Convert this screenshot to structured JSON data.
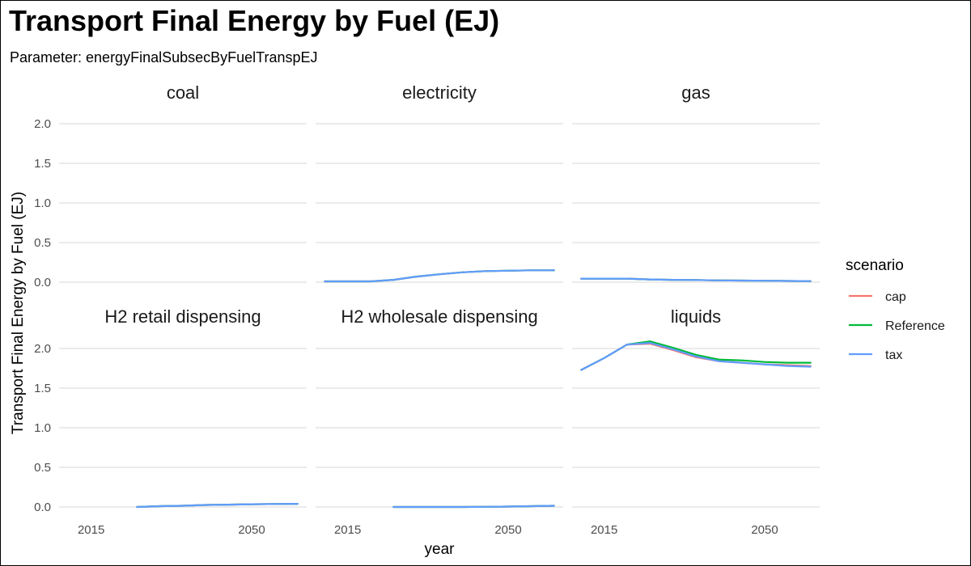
{
  "title": "Transport Final Energy by Fuel (EJ)",
  "subtitle": "Parameter: energyFinalSubsecByFuelTranspEJ",
  "chart_data": {
    "type": "line",
    "title": "Transport Final Energy by Fuel (EJ)",
    "subtitle": "Parameter: energyFinalSubsecByFuelTranspEJ",
    "xlabel": "year",
    "ylabel": "Transport Final Energy by Fuel (EJ)",
    "xlim": [
      2008,
      2062
    ],
    "ylim": [
      0,
      2.1
    ],
    "x_ticks": [
      2015,
      2050
    ],
    "x_tick_labels": [
      "2015",
      "2050"
    ],
    "y_ticks": [
      0,
      0.5,
      1,
      1.5,
      2
    ],
    "y_tick_labels": [
      "0.0",
      "0.5",
      "1.0",
      "1.5",
      "2.0"
    ],
    "grid": true,
    "facet_layout": "2 rows x 3 columns",
    "legend": {
      "title": "scenario",
      "position": "right",
      "entries": [
        {
          "name": "cap",
          "color": "#F8766D"
        },
        {
          "name": "Reference",
          "color": "#00BA38"
        },
        {
          "name": "tax",
          "color": "#619CFF"
        }
      ]
    },
    "panels": [
      {
        "label": "coal",
        "series": []
      },
      {
        "label": "electricity",
        "series": [
          {
            "name": "cap",
            "color": "#F8766D",
            "x": [
              2010,
              2015,
              2020,
              2025,
              2030,
              2035,
              2040,
              2045,
              2050,
              2055,
              2060
            ],
            "y": [
              0.01,
              0.01,
              0.01,
              0.03,
              0.07,
              0.1,
              0.125,
              0.14,
              0.145,
              0.15,
              0.15
            ]
          },
          {
            "name": "Reference",
            "color": "#00BA38",
            "x": [
              2010,
              2015,
              2020,
              2025,
              2030,
              2035,
              2040,
              2045,
              2050,
              2055,
              2060
            ],
            "y": [
              0.01,
              0.01,
              0.01,
              0.03,
              0.07,
              0.1,
              0.125,
              0.14,
              0.145,
              0.15,
              0.15
            ]
          },
          {
            "name": "tax",
            "color": "#619CFF",
            "x": [
              2010,
              2015,
              2020,
              2025,
              2030,
              2035,
              2040,
              2045,
              2050,
              2055,
              2060
            ],
            "y": [
              0.01,
              0.01,
              0.01,
              0.03,
              0.07,
              0.1,
              0.125,
              0.14,
              0.145,
              0.15,
              0.15
            ]
          }
        ]
      },
      {
        "label": "gas",
        "series": [
          {
            "name": "cap",
            "color": "#F8766D",
            "x": [
              2010,
              2015,
              2020,
              2025,
              2030,
              2035,
              2040,
              2045,
              2050,
              2055,
              2060
            ],
            "y": [
              0.045,
              0.045,
              0.045,
              0.035,
              0.03,
              0.028,
              0.022,
              0.02,
              0.018,
              0.015,
              0.013
            ]
          },
          {
            "name": "Reference",
            "color": "#00BA38",
            "x": [
              2010,
              2015,
              2020,
              2025,
              2030,
              2035,
              2040,
              2045,
              2050,
              2055,
              2060
            ],
            "y": [
              0.045,
              0.045,
              0.045,
              0.035,
              0.03,
              0.028,
              0.022,
              0.02,
              0.018,
              0.015,
              0.013
            ]
          },
          {
            "name": "tax",
            "color": "#619CFF",
            "x": [
              2010,
              2015,
              2020,
              2025,
              2030,
              2035,
              2040,
              2045,
              2050,
              2055,
              2060
            ],
            "y": [
              0.045,
              0.045,
              0.045,
              0.035,
              0.03,
              0.028,
              0.022,
              0.02,
              0.018,
              0.015,
              0.013
            ]
          }
        ]
      },
      {
        "label": "H2 retail dispensing",
        "series": [
          {
            "name": "cap",
            "color": "#F8766D",
            "x": [
              2025,
              2030,
              2035,
              2040,
              2045,
              2050,
              2055,
              2060
            ],
            "y": [
              0.0,
              0.01,
              0.015,
              0.025,
              0.03,
              0.035,
              0.038,
              0.04
            ]
          },
          {
            "name": "Reference",
            "color": "#00BA38",
            "x": [
              2025,
              2030,
              2035,
              2040,
              2045,
              2050,
              2055,
              2060
            ],
            "y": [
              0.0,
              0.01,
              0.015,
              0.025,
              0.03,
              0.035,
              0.038,
              0.04
            ]
          },
          {
            "name": "tax",
            "color": "#619CFF",
            "x": [
              2025,
              2030,
              2035,
              2040,
              2045,
              2050,
              2055,
              2060
            ],
            "y": [
              0.0,
              0.01,
              0.015,
              0.025,
              0.03,
              0.035,
              0.038,
              0.04
            ]
          }
        ]
      },
      {
        "label": "H2 wholesale dispensing",
        "series": [
          {
            "name": "cap",
            "color": "#F8766D",
            "x": [
              2025,
              2030,
              2035,
              2040,
              2045,
              2050,
              2055,
              2060
            ],
            "y": [
              0.0,
              0.0,
              0.0,
              0.0,
              0.002,
              0.005,
              0.01,
              0.015
            ]
          },
          {
            "name": "Reference",
            "color": "#00BA38",
            "x": [
              2025,
              2030,
              2035,
              2040,
              2045,
              2050,
              2055,
              2060
            ],
            "y": [
              0.0,
              0.0,
              0.0,
              0.0,
              0.002,
              0.005,
              0.01,
              0.015
            ]
          },
          {
            "name": "tax",
            "color": "#619CFF",
            "x": [
              2025,
              2030,
              2035,
              2040,
              2045,
              2050,
              2055,
              2060
            ],
            "y": [
              0.0,
              0.0,
              0.0,
              0.0,
              0.002,
              0.005,
              0.01,
              0.015
            ]
          }
        ]
      },
      {
        "label": "liquids",
        "series": [
          {
            "name": "cap",
            "color": "#F8766D",
            "x": [
              2010,
              2015,
              2020,
              2025,
              2030,
              2035,
              2040,
              2045,
              2050,
              2055,
              2060
            ],
            "y": [
              1.73,
              1.88,
              2.05,
              2.06,
              1.98,
              1.89,
              1.84,
              1.82,
              1.8,
              1.79,
              1.78
            ]
          },
          {
            "name": "Reference",
            "color": "#00BA38",
            "x": [
              2010,
              2015,
              2020,
              2025,
              2030,
              2035,
              2040,
              2045,
              2050,
              2055,
              2060
            ],
            "y": [
              1.73,
              1.88,
              2.05,
              2.09,
              2.01,
              1.92,
              1.86,
              1.85,
              1.83,
              1.82,
              1.82
            ]
          },
          {
            "name": "tax",
            "color": "#619CFF",
            "x": [
              2010,
              2015,
              2020,
              2025,
              2030,
              2035,
              2040,
              2045,
              2050,
              2055,
              2060
            ],
            "y": [
              1.73,
              1.88,
              2.05,
              2.07,
              1.99,
              1.9,
              1.84,
              1.82,
              1.8,
              1.78,
              1.77
            ]
          }
        ]
      }
    ]
  }
}
